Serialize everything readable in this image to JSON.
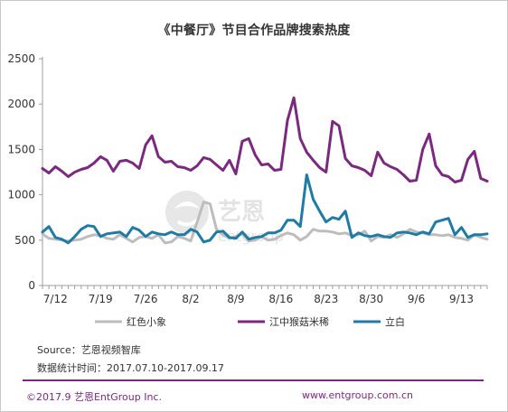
{
  "page": {
    "title": "《中餐厅》节目合作品牌搜索热度",
    "source": "Source：艺恩视频智库",
    "period": "数据统计时间：2017.07.10-2017.09.17",
    "copyright": "©2017.9 艺恩EntGroup Inc.",
    "website": "www.entgroup.com.cn",
    "watermark": {
      "cn": "艺恩",
      "en": "entgroup"
    }
  },
  "colors": {
    "hongse": "#bdbdbd",
    "jiangzhong": "#7a2a7e",
    "libai": "#1f7ba3",
    "axis": "#9e9e9e"
  },
  "chart_data": {
    "type": "line",
    "title": "《中餐厅》节目合作品牌搜索热度",
    "xlabel": "",
    "ylabel": "",
    "ylim": [
      0,
      2500
    ],
    "yticks": [
      0,
      500,
      1000,
      1500,
      2000,
      2500
    ],
    "grid": false,
    "legend": "bottom",
    "x_start": "2017-07-10",
    "x_end": "2017-09-17",
    "xtick_labels": [
      "7/12",
      "7/19",
      "7/26",
      "8/2",
      "8/9",
      "8/16",
      "8/23",
      "8/30",
      "9/6",
      "9/13"
    ],
    "x": [
      "7/10",
      "7/11",
      "7/12",
      "7/13",
      "7/14",
      "7/15",
      "7/16",
      "7/17",
      "7/18",
      "7/19",
      "7/20",
      "7/21",
      "7/22",
      "7/23",
      "7/24",
      "7/25",
      "7/26",
      "7/27",
      "7/28",
      "7/29",
      "7/30",
      "7/31",
      "8/1",
      "8/2",
      "8/3",
      "8/4",
      "8/5",
      "8/6",
      "8/7",
      "8/8",
      "8/9",
      "8/10",
      "8/11",
      "8/12",
      "8/13",
      "8/14",
      "8/15",
      "8/16",
      "8/17",
      "8/18",
      "8/19",
      "8/20",
      "8/21",
      "8/22",
      "8/23",
      "8/24",
      "8/25",
      "8/26",
      "8/27",
      "8/28",
      "8/29",
      "8/30",
      "8/31",
      "9/1",
      "9/2",
      "9/3",
      "9/4",
      "9/5",
      "9/6",
      "9/7",
      "9/8",
      "9/9",
      "9/10",
      "9/11",
      "9/12",
      "9/13",
      "9/14",
      "9/15",
      "9/16",
      "9/17"
    ],
    "series": [
      {
        "name": "红色小象",
        "color_key": "hongse",
        "values": [
          570,
          520,
          510,
          500,
          490,
          500,
          510,
          540,
          560,
          550,
          520,
          510,
          560,
          520,
          480,
          530,
          540,
          520,
          560,
          470,
          480,
          540,
          520,
          490,
          700,
          920,
          900,
          620,
          560,
          520,
          540,
          570,
          490,
          500,
          540,
          500,
          510,
          550,
          580,
          560,
          500,
          540,
          620,
          600,
          600,
          590,
          570,
          580,
          550,
          560,
          600,
          490,
          540,
          530,
          560,
          530,
          570,
          620,
          590,
          580,
          560,
          560,
          550,
          560,
          530,
          520,
          500,
          560,
          530,
          510
        ]
      },
      {
        "name": "江中猴菇米稀",
        "color_key": "jiangzhong",
        "values": [
          1290,
          1240,
          1310,
          1260,
          1200,
          1250,
          1280,
          1300,
          1350,
          1420,
          1380,
          1260,
          1370,
          1380,
          1350,
          1290,
          1550,
          1650,
          1420,
          1360,
          1370,
          1310,
          1300,
          1270,
          1320,
          1410,
          1390,
          1330,
          1270,
          1380,
          1230,
          1590,
          1620,
          1440,
          1330,
          1340,
          1270,
          1280,
          1820,
          2070,
          1620,
          1470,
          1380,
          1300,
          1250,
          1810,
          1760,
          1400,
          1320,
          1300,
          1270,
          1210,
          1470,
          1350,
          1310,
          1280,
          1220,
          1150,
          1160,
          1500,
          1670,
          1320,
          1220,
          1200,
          1140,
          1160,
          1390,
          1480,
          1180,
          1150
        ]
      },
      {
        "name": "立白",
        "color_key": "libai",
        "values": [
          590,
          650,
          530,
          510,
          470,
          540,
          620,
          660,
          650,
          540,
          570,
          580,
          590,
          540,
          640,
          610,
          540,
          590,
          570,
          560,
          590,
          560,
          560,
          620,
          590,
          480,
          500,
          590,
          600,
          530,
          520,
          590,
          510,
          530,
          540,
          580,
          580,
          610,
          720,
          720,
          650,
          1220,
          950,
          820,
          700,
          750,
          730,
          820,
          530,
          580,
          550,
          540,
          560,
          540,
          530,
          580,
          590,
          580,
          560,
          590,
          570,
          700,
          720,
          740,
          560,
          640,
          530,
          560,
          560,
          570
        ]
      }
    ]
  }
}
